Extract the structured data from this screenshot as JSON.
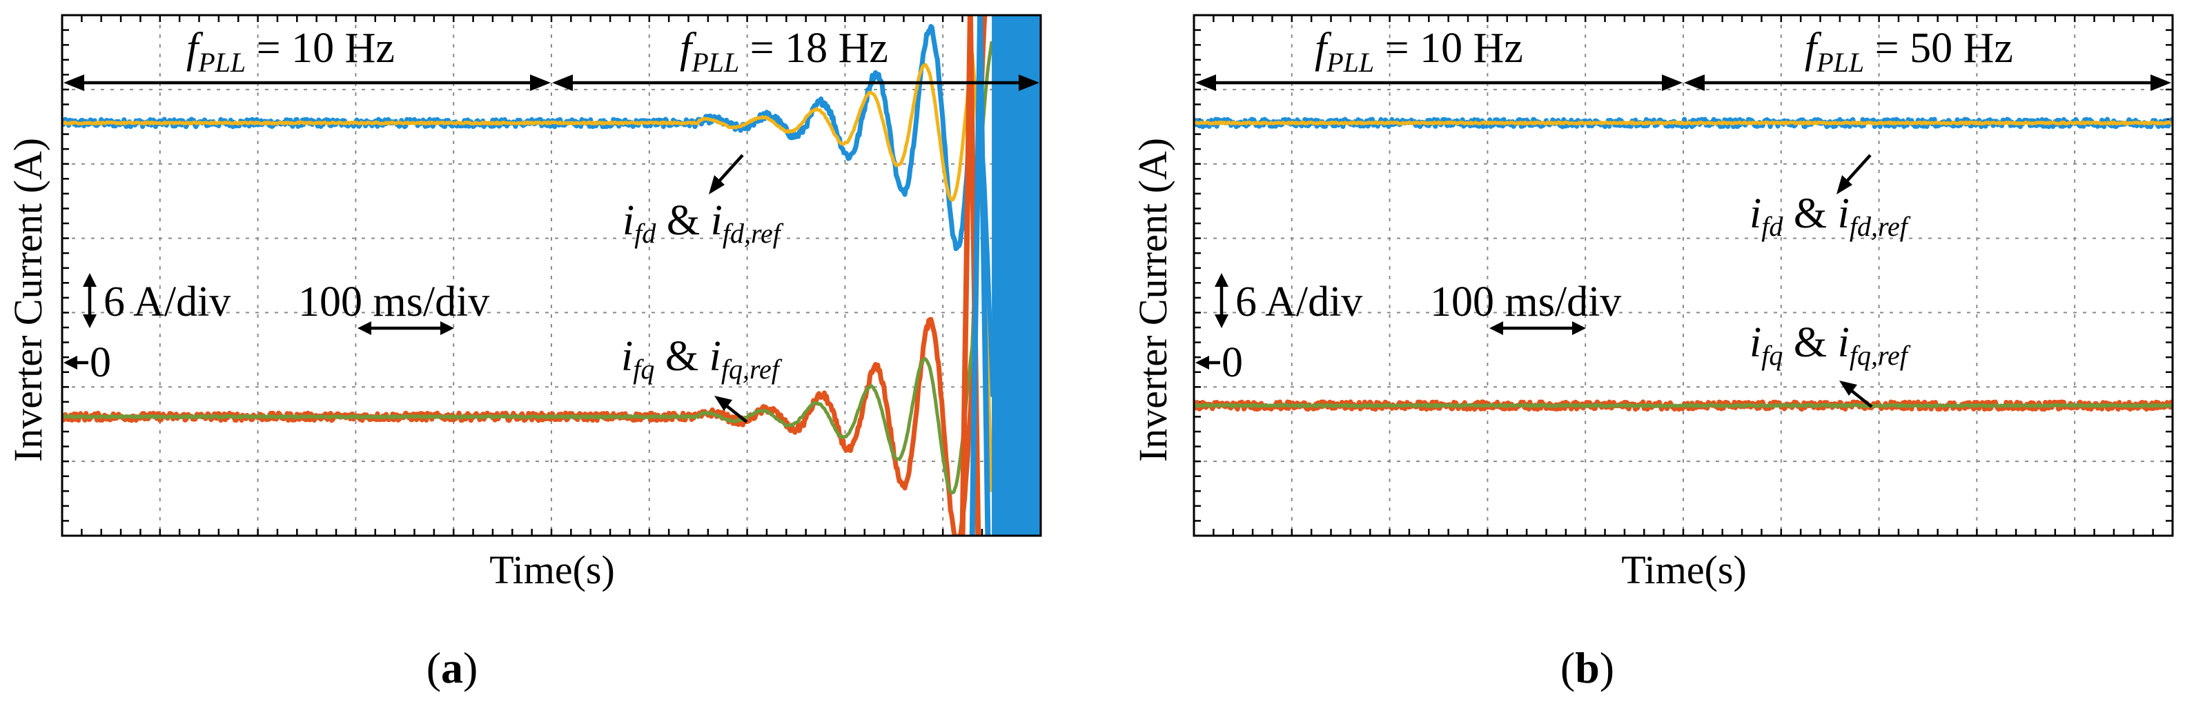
{
  "figure": {
    "captions": {
      "a_bold": "a",
      "b_bold": "b",
      "open": "(",
      "close": ")"
    }
  },
  "chart_data": [
    {
      "id": "a",
      "type": "line",
      "panel_label": "(a)",
      "xlabel": "Time(s)",
      "ylabel": "Inverter Current (A)",
      "x_divisions": 10,
      "y_divisions": 7,
      "scale": {
        "current_label": "6 A/div",
        "time_label": "100 ms/div",
        "zero_label": "0"
      },
      "xlim": [
        0,
        1000
      ],
      "ylim_divs": [
        0,
        7
      ],
      "zero_level_div": 2.45,
      "stages": [
        {
          "fpll_symbol": "f",
          "fpll_sub": "PLL",
          "rest": " = 10 Hz",
          "x_start_ms": 0,
          "x_end_ms": 500
        },
        {
          "fpll_symbol": "f",
          "fpll_sub": "PLL",
          "rest": " = 18 Hz",
          "x_start_ms": 500,
          "x_end_ms": 1000
        }
      ],
      "annotations": {
        "fd": {
          "i": "i",
          "sub": "fd",
          "amp": " & ",
          "i_ref": "i",
          "sub_ref": "fd,ref"
        },
        "fq": {
          "i": "i",
          "sub": "fq",
          "amp": " & ",
          "i_ref": "i",
          "sub_ref": "fq,ref"
        }
      },
      "series": [
        {
          "name": "i_fd",
          "color": "#1f8fd8",
          "base_div": 5.55,
          "behavior": "unstable",
          "onset_ms": 650,
          "diverge_ms": 930
        },
        {
          "name": "i_fd,ref",
          "color": "#f2b31a",
          "base_div": 5.55,
          "behavior": "unstable-ref",
          "onset_ms": 650,
          "diverge_ms": 930
        },
        {
          "name": "i_fq",
          "color": "#e2541c",
          "base_div": 1.6,
          "behavior": "unstable",
          "onset_ms": 650,
          "diverge_ms": 930
        },
        {
          "name": "i_fq,ref",
          "color": "#6f9a3a",
          "base_div": 1.6,
          "behavior": "unstable-ref",
          "onset_ms": 650,
          "diverge_ms": 930
        }
      ]
    },
    {
      "id": "b",
      "type": "line",
      "panel_label": "(b)",
      "xlabel": "Time(s)",
      "ylabel": "Inverter Current (A)",
      "x_divisions": 10,
      "y_divisions": 7,
      "scale": {
        "current_label": "6 A/div",
        "time_label": "100 ms/div",
        "zero_label": "0"
      },
      "xlim": [
        0,
        1000
      ],
      "ylim_divs": [
        0,
        7
      ],
      "zero_level_div": 2.45,
      "stages": [
        {
          "fpll_symbol": "f",
          "fpll_sub": "PLL",
          "rest": " = 10 Hz",
          "x_start_ms": 0,
          "x_end_ms": 500
        },
        {
          "fpll_symbol": "f",
          "fpll_sub": "PLL",
          "rest": " = 50 Hz",
          "x_start_ms": 500,
          "x_end_ms": 1000
        }
      ],
      "annotations": {
        "fd": {
          "i": "i",
          "sub": "fd",
          "amp": " & ",
          "i_ref": "i",
          "sub_ref": "fd,ref"
        },
        "fq": {
          "i": "i",
          "sub": "fq",
          "amp": " & ",
          "i_ref": "i",
          "sub_ref": "fq,ref"
        }
      },
      "series": [
        {
          "name": "i_fd",
          "color": "#1f8fd8",
          "base_div": 5.55,
          "behavior": "stable"
        },
        {
          "name": "i_fd,ref",
          "color": "#f2b31a",
          "base_div": 5.55,
          "behavior": "stable-ref"
        },
        {
          "name": "i_fq",
          "color": "#e2541c",
          "base_div": 1.75,
          "behavior": "stable"
        },
        {
          "name": "i_fq,ref",
          "color": "#6f9a3a",
          "base_div": 1.75,
          "behavior": "stable-ref"
        }
      ]
    }
  ]
}
